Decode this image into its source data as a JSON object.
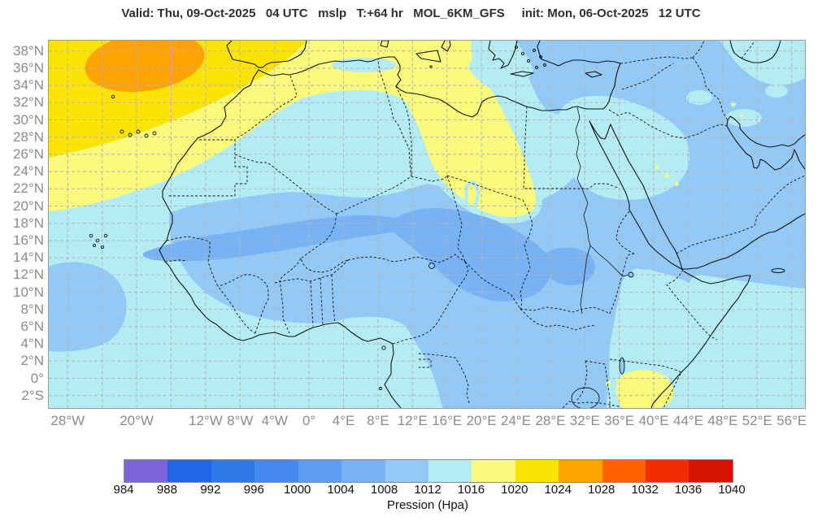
{
  "title": "Valid: Thu, 09-Oct-2025   04 UTC   mslp   T:+64 hr   MOL_6KM_GFS     init: Mon, 06-Oct-2025   12 UTC",
  "axes": {
    "lat_ticks": [
      {
        "label": "38°N",
        "deg": 38
      },
      {
        "label": "36°N",
        "deg": 36
      },
      {
        "label": "34°N",
        "deg": 34
      },
      {
        "label": "32°N",
        "deg": 32
      },
      {
        "label": "30°N",
        "deg": 30
      },
      {
        "label": "28°N",
        "deg": 28
      },
      {
        "label": "26°N",
        "deg": 26
      },
      {
        "label": "24°N",
        "deg": 24
      },
      {
        "label": "22°N",
        "deg": 22
      },
      {
        "label": "20°N",
        "deg": 20
      },
      {
        "label": "18°N",
        "deg": 18
      },
      {
        "label": "16°N",
        "deg": 16
      },
      {
        "label": "14°N",
        "deg": 14
      },
      {
        "label": "12°N",
        "deg": 12
      },
      {
        "label": "10°N",
        "deg": 10
      },
      {
        "label": "8°N",
        "deg": 8
      },
      {
        "label": "6°N",
        "deg": 6
      },
      {
        "label": "4°N",
        "deg": 4
      },
      {
        "label": "2°N",
        "deg": 2
      },
      {
        "label": "0°",
        "deg": 0
      },
      {
        "label": "2°S",
        "deg": -2
      }
    ],
    "lon_ticks": [
      {
        "label": "28°W",
        "deg": -28
      },
      {
        "label": "20°W",
        "deg": -20
      },
      {
        "label": "12°W",
        "deg": -12
      },
      {
        "label": "8°W",
        "deg": -8
      },
      {
        "label": "4°W",
        "deg": -4
      },
      {
        "label": "0°",
        "deg": 0
      },
      {
        "label": "4°E",
        "deg": 4
      },
      {
        "label": "8°E",
        "deg": 8
      },
      {
        "label": "12°E",
        "deg": 12
      },
      {
        "label": "16°E",
        "deg": 16
      },
      {
        "label": "20°E",
        "deg": 20
      },
      {
        "label": "24°E",
        "deg": 24
      },
      {
        "label": "28°E",
        "deg": 28
      },
      {
        "label": "32°E",
        "deg": 32
      },
      {
        "label": "36°E",
        "deg": 36
      },
      {
        "label": "40°E",
        "deg": 40
      },
      {
        "label": "44°E",
        "deg": 44
      },
      {
        "label": "48°E",
        "deg": 48
      },
      {
        "label": "52°E",
        "deg": 52
      },
      {
        "label": "56°E",
        "deg": 56
      }
    ],
    "grid_lon_step": 4,
    "grid_lat_step": 2
  },
  "colorbar": {
    "label": "Pression (Hpa)",
    "tick_values": [
      984,
      988,
      992,
      996,
      1000,
      1004,
      1008,
      1012,
      1016,
      1020,
      1024,
      1028,
      1032,
      1036,
      1040
    ],
    "band_colors": [
      "#7d63da",
      "#2065e8",
      "#2f78ea",
      "#4489ee",
      "#5c9df1",
      "#76b2f4",
      "#92c9f7",
      "#b4ecf3",
      "#fafa7d",
      "#fbe303",
      "#ffa303",
      "#ff6200",
      "#f22d00",
      "#d31400"
    ],
    "border_color": "#8a8a8a"
  },
  "style_colors": {
    "grid_line": "#b5b5b5",
    "coastline": "#141414",
    "axis_text": "#8b8b8b",
    "title_text": "#2f2f2f"
  }
}
